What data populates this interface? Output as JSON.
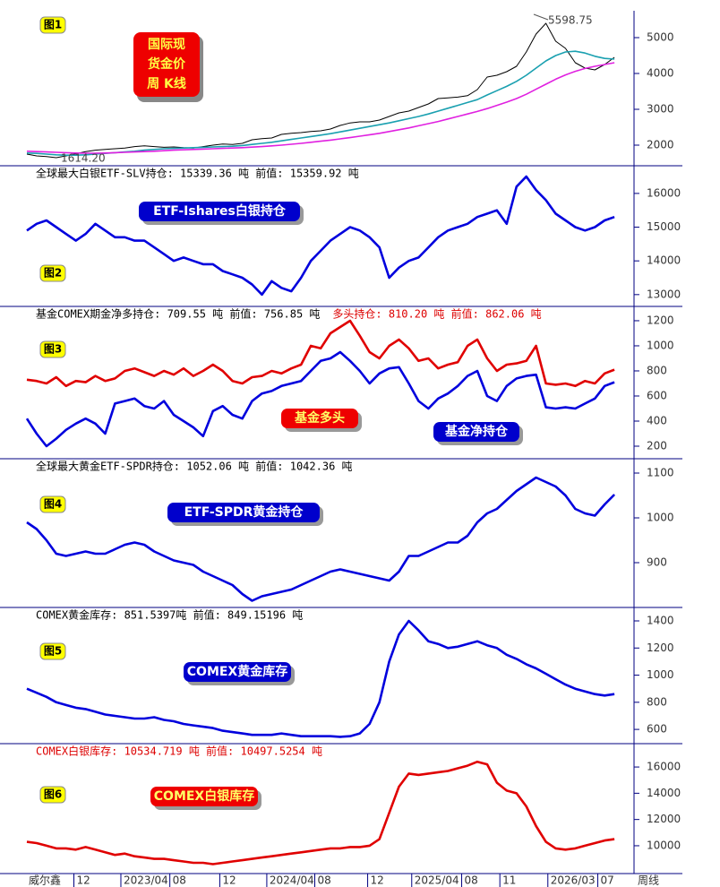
{
  "chart_data": [
    {
      "type": "line",
      "badge": "图1",
      "title": [
        "国际现",
        "货金价",
        "周 K线"
      ],
      "annotations": [
        "5598.75",
        "1614.20"
      ],
      "ylim": [
        1425,
        5750
      ],
      "yticks": [
        2000,
        3000,
        4000,
        5000
      ],
      "series": [
        {
          "color": "#000000",
          "values": [
            1750,
            1700,
            1680,
            1650,
            1700,
            1760,
            1820,
            1860,
            1880,
            1900,
            1920,
            1960,
            1980,
            1960,
            1940,
            1950,
            1930,
            1920,
            1960,
            2000,
            2030,
            2020,
            2050,
            2150,
            2180,
            2200,
            2300,
            2330,
            2350,
            2380,
            2400,
            2450,
            2550,
            2620,
            2650,
            2650,
            2700,
            2800,
            2900,
            2950,
            3050,
            3150,
            3300,
            3320,
            3340,
            3380,
            3550,
            3900,
            3950,
            4050,
            4200,
            4600,
            5100,
            5400,
            4900,
            4700,
            4300,
            4150,
            4100,
            4250,
            4450
          ]
        },
        {
          "color": "#1aa0b0",
          "values": [
            1780,
            1770,
            1750,
            1730,
            1720,
            1720,
            1730,
            1750,
            1770,
            1790,
            1810,
            1830,
            1860,
            1880,
            1900,
            1910,
            1920,
            1930,
            1940,
            1950,
            1960,
            1970,
            1990,
            2020,
            2050,
            2080,
            2120,
            2160,
            2200,
            2240,
            2280,
            2320,
            2370,
            2420,
            2470,
            2520,
            2570,
            2620,
            2680,
            2740,
            2800,
            2870,
            2950,
            3030,
            3110,
            3190,
            3270,
            3400,
            3520,
            3640,
            3780,
            3950,
            4150,
            4350,
            4500,
            4600,
            4620,
            4570,
            4480,
            4420,
            4400
          ]
        },
        {
          "color": "#e020e0",
          "values": [
            1830,
            1820,
            1810,
            1800,
            1790,
            1780,
            1775,
            1775,
            1780,
            1790,
            1800,
            1810,
            1820,
            1830,
            1845,
            1860,
            1870,
            1880,
            1890,
            1900,
            1910,
            1920,
            1930,
            1945,
            1960,
            1980,
            2000,
            2025,
            2050,
            2080,
            2110,
            2140,
            2175,
            2210,
            2250,
            2290,
            2330,
            2380,
            2430,
            2480,
            2540,
            2600,
            2660,
            2730,
            2800,
            2870,
            2940,
            3020,
            3110,
            3200,
            3300,
            3420,
            3560,
            3700,
            3840,
            3960,
            4060,
            4140,
            4200,
            4250,
            4300
          ]
        }
      ]
    },
    {
      "type": "line",
      "badge": "图2",
      "title": "ETF-Ishares白银持仓",
      "header": [
        {
          "text": "全球最大白银ETF-SLV持仓: 15339.36 吨   前值: 15359.92 吨",
          "color": "#000000"
        }
      ],
      "ylim": [
        12650,
        16820
      ],
      "yticks": [
        13000,
        14000,
        15000,
        16000
      ],
      "series": [
        {
          "color": "#0000dd",
          "values": [
            14900,
            15100,
            15200,
            15000,
            14800,
            14600,
            14800,
            15100,
            14900,
            14700,
            14700,
            14600,
            14600,
            14400,
            14200,
            14000,
            14100,
            14000,
            13900,
            13900,
            13700,
            13600,
            13500,
            13300,
            13000,
            13400,
            13200,
            13100,
            13500,
            14000,
            14300,
            14600,
            14800,
            15000,
            14900,
            14700,
            14400,
            13500,
            13800,
            14000,
            14100,
            14400,
            14700,
            14900,
            15000,
            15100,
            15300,
            15400,
            15500,
            15100,
            16200,
            16500,
            16100,
            15800,
            15400,
            15200,
            15000,
            14900,
            15000,
            15200,
            15300
          ]
        }
      ]
    },
    {
      "type": "line",
      "badge": "图3",
      "header": [
        {
          "text": "基金COMEX期金净多持仓: 709.55 吨  前值: 756.85 吨",
          "color": "#000000"
        },
        {
          "text": "多头持仓: 810.20 吨  前值: 862.06 吨",
          "color": "#dd0000"
        }
      ],
      "ylim": [
        100,
        1314
      ],
      "yticks": [
        200,
        400,
        600,
        800,
        1000,
        1200
      ],
      "series": [
        {
          "name": "基金多头",
          "color": "#e00000",
          "values": [
            730,
            720,
            700,
            750,
            680,
            720,
            710,
            760,
            720,
            740,
            800,
            820,
            790,
            760,
            800,
            770,
            820,
            760,
            800,
            850,
            800,
            720,
            700,
            750,
            760,
            800,
            780,
            820,
            850,
            1000,
            980,
            1100,
            1150,
            1200,
            1080,
            950,
            900,
            1000,
            1050,
            980,
            880,
            900,
            820,
            850,
            870,
            1000,
            1050,
            900,
            800,
            850,
            860,
            880,
            1000,
            700,
            690,
            700,
            680,
            720,
            700,
            780,
            810
          ]
        },
        {
          "name": "基金净持仓",
          "color": "#0000dd",
          "values": [
            420,
            300,
            200,
            260,
            330,
            380,
            420,
            380,
            300,
            540,
            560,
            580,
            520,
            500,
            560,
            450,
            400,
            350,
            280,
            480,
            520,
            450,
            420,
            560,
            620,
            640,
            680,
            700,
            720,
            800,
            880,
            900,
            950,
            880,
            800,
            700,
            780,
            820,
            830,
            700,
            560,
            500,
            580,
            620,
            680,
            760,
            800,
            600,
            560,
            680,
            740,
            760,
            770,
            510,
            500,
            510,
            500,
            540,
            580,
            680,
            710
          ]
        }
      ]
    },
    {
      "type": "line",
      "badge": "图4",
      "title": "ETF-SPDR黄金持仓",
      "header": [
        {
          "text": "全球最大黄金ETF-SPDR持仓: 1052.06 吨   前值: 1042.36 吨",
          "color": "#000000"
        }
      ],
      "ylim": [
        800,
        1132
      ],
      "yticks": [
        900,
        1000,
        1100
      ],
      "series": [
        {
          "color": "#0000dd",
          "values": [
            990,
            975,
            950,
            920,
            915,
            920,
            925,
            920,
            920,
            930,
            940,
            945,
            940,
            925,
            915,
            905,
            900,
            895,
            880,
            870,
            860,
            850,
            830,
            815,
            825,
            830,
            835,
            840,
            850,
            860,
            870,
            880,
            885,
            880,
            875,
            870,
            865,
            860,
            880,
            915,
            915,
            925,
            935,
            945,
            945,
            960,
            990,
            1010,
            1020,
            1040,
            1060,
            1075,
            1090,
            1080,
            1070,
            1050,
            1020,
            1010,
            1005,
            1030,
            1052
          ]
        }
      ]
    },
    {
      "type": "line",
      "badge": "图5",
      "title": "COMEX黄金库存",
      "header": [
        {
          "text": "COMEX黄金库存: 851.5397吨    前值: 849.15196 吨",
          "color": "#000000"
        }
      ],
      "ylim": [
        495,
        1499
      ],
      "yticks": [
        600,
        800,
        1000,
        1200,
        1400
      ],
      "series": [
        {
          "color": "#0000dd",
          "values": [
            900,
            870,
            840,
            800,
            780,
            760,
            750,
            730,
            710,
            700,
            690,
            680,
            680,
            690,
            670,
            660,
            640,
            630,
            620,
            610,
            590,
            580,
            570,
            560,
            560,
            560,
            570,
            560,
            550,
            550,
            550,
            550,
            545,
            550,
            570,
            640,
            800,
            1100,
            1300,
            1400,
            1330,
            1250,
            1230,
            1200,
            1210,
            1230,
            1250,
            1220,
            1200,
            1150,
            1120,
            1080,
            1050,
            1010,
            970,
            930,
            900,
            880,
            860,
            850,
            860
          ]
        }
      ]
    },
    {
      "type": "line",
      "badge": "图6",
      "title": "COMEX白银库存",
      "source": "威尔鑫",
      "period": "周线",
      "header": [
        {
          "text": "COMEX白银库存: 10534.719 吨  前值: 10497.5254 吨",
          "color": "#dd0000"
        }
      ],
      "ylim": [
        7880,
        17780
      ],
      "yticks": [
        10000,
        12000,
        14000,
        16000
      ],
      "xlim": [
        0,
        62
      ],
      "xticks": [
        {
          "value": 4.8,
          "label": "12"
        },
        {
          "value": 9.6,
          "label": "2023/04"
        },
        {
          "value": 14.6,
          "label": "08"
        },
        {
          "value": 19.7,
          "label": "12"
        },
        {
          "value": 24.5,
          "label": "2024/04"
        },
        {
          "value": 29.4,
          "label": "08"
        },
        {
          "value": 34.8,
          "label": "12"
        },
        {
          "value": 39.3,
          "label": "2025/04"
        },
        {
          "value": 44.4,
          "label": "08"
        },
        {
          "value": 48.3,
          "label": "11"
        },
        {
          "value": 53.2,
          "label": "2026/03"
        },
        {
          "value": 58.3,
          "label": "07"
        }
      ],
      "series": [
        {
          "color": "#e00000",
          "values": [
            10300,
            10200,
            10000,
            9800,
            9800,
            9700,
            9900,
            9700,
            9500,
            9300,
            9400,
            9200,
            9100,
            9000,
            9000,
            8900,
            8800,
            8700,
            8700,
            8600,
            8700,
            8800,
            8900,
            9000,
            9100,
            9200,
            9300,
            9400,
            9500,
            9600,
            9700,
            9800,
            9800,
            9900,
            9900,
            10000,
            10500,
            12500,
            14500,
            15500,
            15400,
            15500,
            15600,
            15700,
            15900,
            16100,
            16400,
            16200,
            14800,
            14200,
            14000,
            13000,
            11500,
            10300,
            9800,
            9700,
            9800,
            10000,
            10200,
            10400,
            10500
          ]
        }
      ]
    }
  ]
}
